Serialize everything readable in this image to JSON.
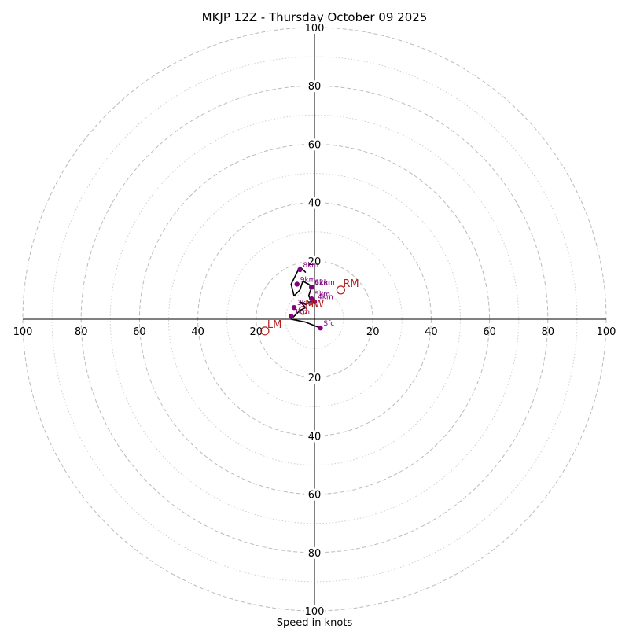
{
  "chart_data": {
    "type": "hodograph",
    "title": "MKJP 12Z - Thursday October 09 2025",
    "xlabel": "Speed in knots",
    "xlim": [
      -100,
      100
    ],
    "ylim": [
      -100,
      100
    ],
    "ring_major": [
      20,
      40,
      60,
      80,
      100
    ],
    "ring_minor": [
      10,
      30,
      50,
      70,
      90
    ],
    "tick_labels": [
      "20",
      "40",
      "60",
      "80",
      "100"
    ],
    "hodograph": {
      "u": [
        2,
        -3,
        -8,
        -6,
        -5,
        -3,
        -5,
        -3,
        0,
        -1,
        -2,
        -1,
        -2,
        -4,
        -5,
        -7,
        -8,
        -6,
        -5,
        -3
      ],
      "v": [
        -3,
        -1,
        0,
        2,
        3,
        4,
        6,
        5,
        7,
        6,
        8,
        11,
        12,
        13,
        10,
        8,
        12,
        16,
        18,
        16
      ]
    },
    "height_markers": [
      {
        "label": "Sfc",
        "u": 2,
        "v": -3
      },
      {
        "label": "1km",
        "u": -8,
        "v": 1
      },
      {
        "label": "3km",
        "u": -7,
        "v": 4
      },
      {
        "label": "4km",
        "u": 0,
        "v": 6
      },
      {
        "label": "5km",
        "u": -1,
        "v": 7
      },
      {
        "label": "6km",
        "u": -1,
        "v": 11
      },
      {
        "label": "12km",
        "u": -1,
        "v": 11
      },
      {
        "label": "9km",
        "u": -6,
        "v": 12
      },
      {
        "label": "8km",
        "u": -5,
        "v": 17
      }
    ],
    "storm_motion": [
      {
        "label": "RM",
        "u": 9,
        "v": 10
      },
      {
        "label": "LM",
        "u": -17,
        "v": -4
      },
      {
        "label": "MW",
        "u": -4,
        "v": 3
      }
    ],
    "colors": {
      "trace": "#000000",
      "markers": "#800080",
      "storm_motion": "#b22222",
      "rings": "#bbbbbb",
      "axes": "#000000"
    }
  }
}
